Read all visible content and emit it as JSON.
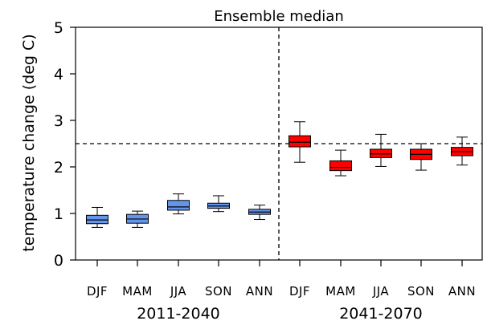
{
  "chart_data": {
    "type": "box",
    "title": "Ensemble median",
    "xlabel": "",
    "ylabel": "temperature change (deg C)",
    "ylim": [
      0,
      5
    ],
    "yticks": [
      0,
      1,
      2,
      3,
      4,
      5
    ],
    "grid": false,
    "reference_line_y": 2.5,
    "groups": [
      {
        "name": "2011-2040",
        "color": "#6495ED",
        "boxes": [
          {
            "label": "DJF",
            "whisker_low": 0.7,
            "q1": 0.78,
            "median": 0.86,
            "q3": 0.96,
            "whisker_high": 1.13
          },
          {
            "label": "MAM",
            "whisker_low": 0.7,
            "q1": 0.79,
            "median": 0.88,
            "q3": 0.98,
            "whisker_high": 1.05
          },
          {
            "label": "JJA",
            "whisker_low": 0.99,
            "q1": 1.07,
            "median": 1.14,
            "q3": 1.28,
            "whisker_high": 1.42
          },
          {
            "label": "SON",
            "whisker_low": 1.04,
            "q1": 1.11,
            "median": 1.16,
            "q3": 1.22,
            "whisker_high": 1.38
          },
          {
            "label": "ANN",
            "whisker_low": 0.87,
            "q1": 0.98,
            "median": 1.03,
            "q3": 1.09,
            "whisker_high": 1.18
          }
        ]
      },
      {
        "name": "2041-2070",
        "color": "#FF0000",
        "boxes": [
          {
            "label": "DJF",
            "whisker_low": 2.1,
            "q1": 2.43,
            "median": 2.53,
            "q3": 2.67,
            "whisker_high": 2.97
          },
          {
            "label": "MAM",
            "whisker_low": 1.81,
            "q1": 1.92,
            "median": 1.99,
            "q3": 2.13,
            "whisker_high": 2.36
          },
          {
            "label": "JJA",
            "whisker_low": 2.01,
            "q1": 2.2,
            "median": 2.28,
            "q3": 2.38,
            "whisker_high": 2.7
          },
          {
            "label": "SON",
            "whisker_low": 1.93,
            "q1": 2.16,
            "median": 2.27,
            "q3": 2.38,
            "whisker_high": 2.5
          },
          {
            "label": "ANN",
            "whisker_low": 2.04,
            "q1": 2.24,
            "median": 2.33,
            "q3": 2.42,
            "whisker_high": 2.64
          }
        ]
      }
    ]
  }
}
